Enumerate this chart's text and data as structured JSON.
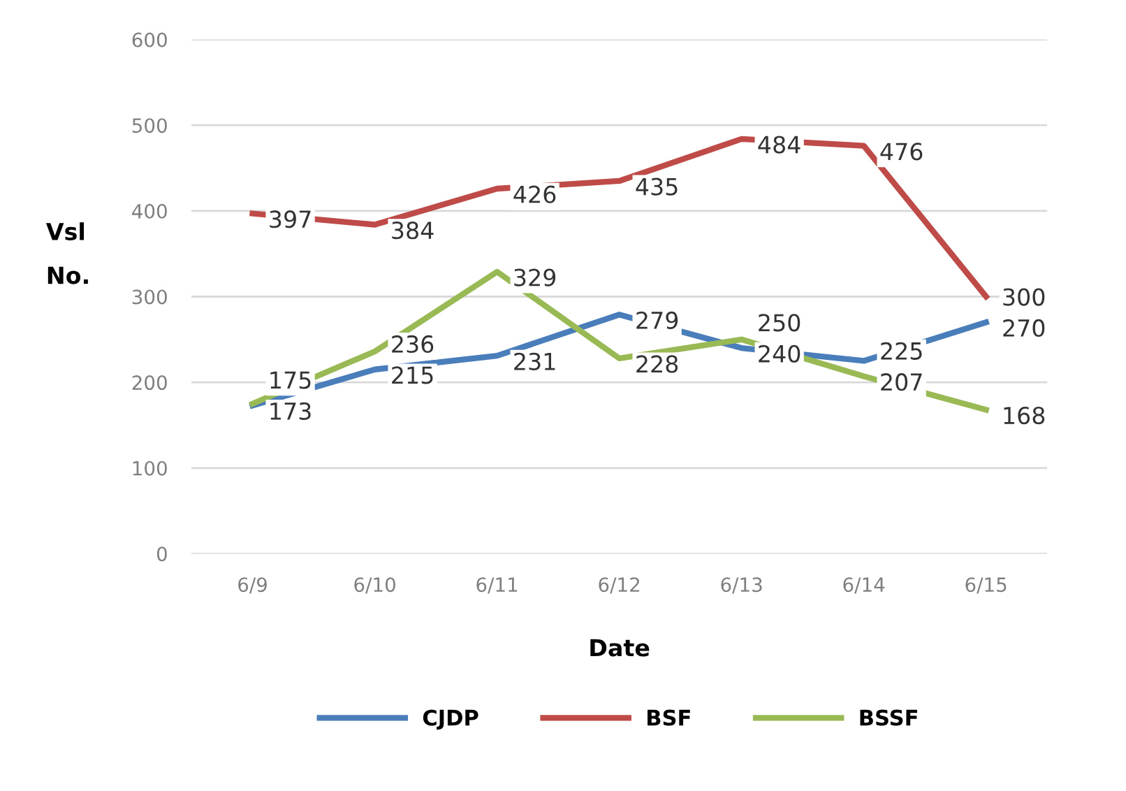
{
  "chart_data": {
    "type": "line",
    "xlabel": "Date",
    "ylabel": "Vsl\nNo.",
    "categories": [
      "6/9",
      "6/10",
      "6/11",
      "6/12",
      "6/13",
      "6/14",
      "6/15"
    ],
    "series": [
      {
        "name": "CJDP",
        "color": "#4a7ebb",
        "values": [
          173,
          215,
          231,
          279,
          240,
          225,
          270
        ]
      },
      {
        "name": "BSF",
        "color": "#be4b48",
        "values": [
          397,
          384,
          426,
          435,
          484,
          476,
          300
        ]
      },
      {
        "name": "BSSF",
        "color": "#98b954",
        "values": [
          175,
          236,
          329,
          228,
          250,
          207,
          168
        ]
      }
    ],
    "ylim": [
      0,
      600
    ],
    "yticks": [
      0,
      100,
      200,
      300,
      400,
      500,
      600
    ],
    "grid": "y",
    "legend": "bottom",
    "data_labels": true,
    "marker": "none",
    "line_style": "solid"
  }
}
